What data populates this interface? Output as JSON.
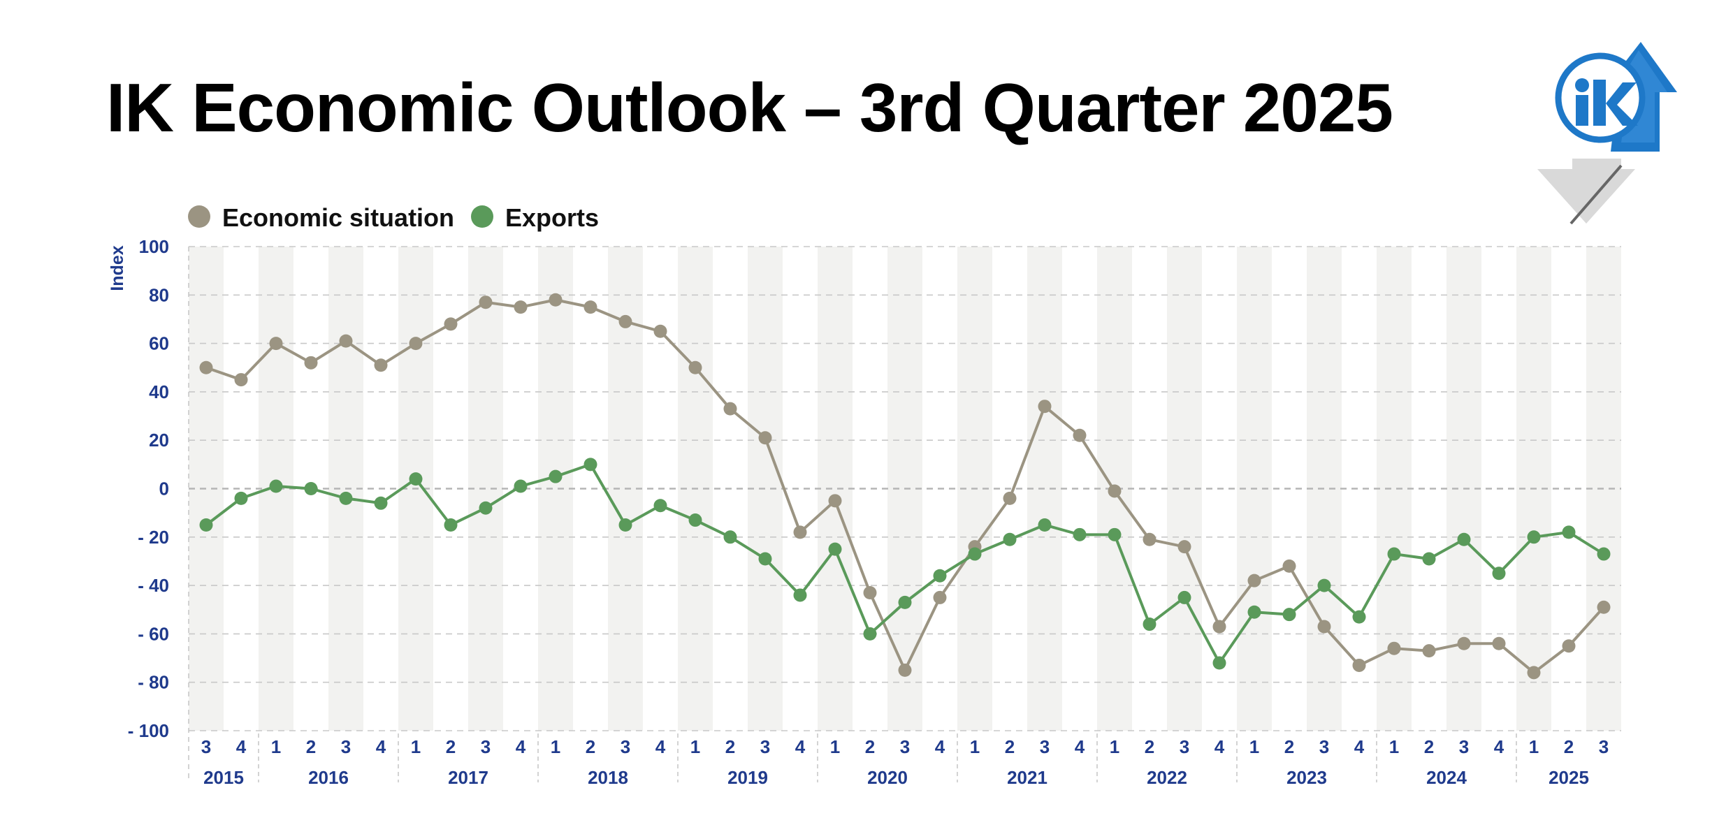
{
  "title": "IK Economic Outlook – 3rd Quarter 2025",
  "logo": {
    "icon": "ik-logo-icon",
    "text": "IK"
  },
  "chart_data": {
    "type": "line",
    "title": "IK Economic Outlook – 3rd Quarter 2025",
    "ylabel": "Index",
    "xlabel": "",
    "ylim": [
      -100,
      100
    ],
    "yticks": [
      100,
      80,
      60,
      40,
      20,
      0,
      -20,
      -40,
      -60,
      -80,
      -100
    ],
    "ytick_labels": [
      "100",
      "80",
      "60",
      "40",
      "20",
      "0",
      "- 20",
      "- 40",
      "- 60",
      "- 80",
      "- 100"
    ],
    "grid": true,
    "legend": {
      "placement": "top-left",
      "entries": [
        "Economic situation",
        "Exports"
      ]
    },
    "x_quarters": [
      "3",
      "4",
      "1",
      "2",
      "3",
      "4",
      "1",
      "2",
      "3",
      "4",
      "1",
      "2",
      "3",
      "4",
      "1",
      "2",
      "3",
      "4",
      "1",
      "2",
      "3",
      "4",
      "1",
      "2",
      "3",
      "4",
      "1",
      "2",
      "3",
      "4",
      "1",
      "2",
      "3",
      "4",
      "1",
      "2",
      "3",
      "4",
      "1",
      "2",
      "3"
    ],
    "years": [
      {
        "label": "2015",
        "quarters": 2
      },
      {
        "label": "2016",
        "quarters": 4
      },
      {
        "label": "2017",
        "quarters": 4
      },
      {
        "label": "2018",
        "quarters": 4
      },
      {
        "label": "2019",
        "quarters": 4
      },
      {
        "label": "2020",
        "quarters": 4
      },
      {
        "label": "2021",
        "quarters": 4
      },
      {
        "label": "2022",
        "quarters": 4
      },
      {
        "label": "2023",
        "quarters": 4
      },
      {
        "label": "2024",
        "quarters": 4
      },
      {
        "label": "2025",
        "quarters": 3
      }
    ],
    "series": [
      {
        "name": "Economic situation",
        "color": "#9b9482",
        "values": [
          50,
          45,
          60,
          52,
          61,
          51,
          60,
          68,
          77,
          75,
          78,
          75,
          69,
          65,
          50,
          33,
          21,
          -18,
          -5,
          -43,
          -75,
          -45,
          -24,
          -4,
          34,
          22,
          -1,
          -21,
          -24,
          -57,
          -38,
          -32,
          -57,
          -73,
          -66,
          -67,
          -64,
          -64,
          -76,
          -65,
          -49
        ]
      },
      {
        "name": "Exports",
        "color": "#5a9a5a",
        "values": [
          -15,
          -4,
          1,
          0,
          -4,
          -6,
          4,
          -15,
          -8,
          1,
          5,
          10,
          -15,
          -7,
          -13,
          -20,
          -29,
          -44,
          -25,
          -60,
          -47,
          -36,
          -27,
          -21,
          -15,
          -19,
          -19,
          -56,
          -45,
          -72,
          -51,
          -52,
          -40,
          -53,
          -27,
          -29,
          -21,
          -35,
          -20,
          -18,
          -27
        ]
      }
    ]
  },
  "colors": {
    "axis_text": "#1f3a8c",
    "band": "#f2f2f0",
    "grid": "#c8c8c8",
    "logo_blue": "#1e78c8",
    "logo_gray": "#d8d8d8"
  }
}
